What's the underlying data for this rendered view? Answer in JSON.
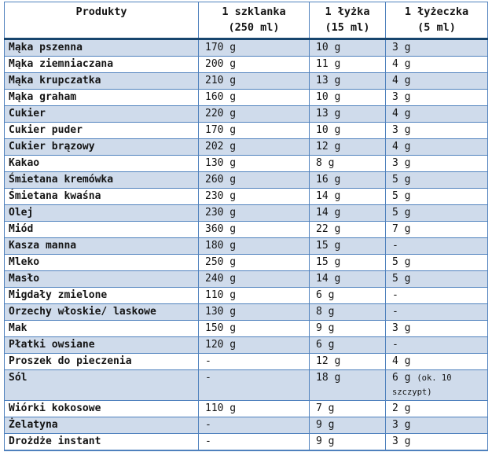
{
  "table": {
    "columns": [
      {
        "key": "product",
        "label": "Produkty",
        "sub": ""
      },
      {
        "key": "glass",
        "label": "1 szklanka",
        "sub": "(250 ml)"
      },
      {
        "key": "spoon",
        "label": "1 łyżka",
        "sub": "(15 ml)"
      },
      {
        "key": "tsp",
        "label": "1 łyżeczka",
        "sub": "(5 ml)"
      }
    ],
    "rows": [
      {
        "product": "Mąka pszenna",
        "glass": "170 g",
        "spoon": "10 g",
        "tsp": "3 g"
      },
      {
        "product": "Mąka ziemniaczana",
        "glass": "200 g",
        "spoon": "11 g",
        "tsp": "4 g"
      },
      {
        "product": "Mąka krupczatka",
        "glass": "210 g",
        "spoon": "13 g",
        "tsp": "4 g"
      },
      {
        "product": "Mąka graham",
        "glass": "160 g",
        "spoon": "10 g",
        "tsp": "3 g"
      },
      {
        "product": "Cukier",
        "glass": "220 g",
        "spoon": "13 g",
        "tsp": "4 g"
      },
      {
        "product": "Cukier puder",
        "glass": "170 g",
        "spoon": "10 g",
        "tsp": "3 g"
      },
      {
        "product": "Cukier brązowy",
        "glass": "202 g",
        "spoon": "12 g",
        "tsp": "4 g"
      },
      {
        "product": "Kakao",
        "glass": "130 g",
        "spoon": "8 g",
        "tsp": "3 g"
      },
      {
        "product": "Śmietana kremówka",
        "glass": "260 g",
        "spoon": "16 g",
        "tsp": "5 g"
      },
      {
        "product": "Śmietana kwaśna",
        "glass": "230 g",
        "spoon": "14 g",
        "tsp": "5 g"
      },
      {
        "product": "Olej",
        "glass": "230 g",
        "spoon": "14 g",
        "tsp": "5 g"
      },
      {
        "product": "Miód",
        "glass": "360 g",
        "spoon": "22 g",
        "tsp": "7 g"
      },
      {
        "product": "Kasza manna",
        "glass": "180 g",
        "spoon": "15 g",
        "tsp": "-"
      },
      {
        "product": "Mleko",
        "glass": "250 g",
        "spoon": "15 g",
        "tsp": "5 g"
      },
      {
        "product": "Masło",
        "glass": "240 g",
        "spoon": "14 g",
        "tsp": "5 g"
      },
      {
        "product": "Migdały zmielone",
        "glass": "110 g",
        "spoon": "6 g",
        "tsp": "-"
      },
      {
        "product": "Orzechy włoskie/ laskowe",
        "glass": "130 g",
        "spoon": "8 g",
        "tsp": "-"
      },
      {
        "product": "Mak",
        "glass": "150 g",
        "spoon": "9 g",
        "tsp": "3 g"
      },
      {
        "product": "Płatki owsiane",
        "glass": "120 g",
        "spoon": "6 g",
        "tsp": "-"
      },
      {
        "product": "Proszek do pieczenia",
        "glass": "-",
        "spoon": "12 g",
        "tsp": "4 g"
      },
      {
        "product": "Sól",
        "glass": "-",
        "spoon": "18 g",
        "tsp": "6 g",
        "tsp_note": "(ok. 10 szczypt)"
      },
      {
        "product": "Wiórki kokosowe",
        "glass": "110 g",
        "spoon": "7 g",
        "tsp": "2 g"
      },
      {
        "product": "Żelatyna",
        "glass": "-",
        "spoon": "9 g",
        "tsp": "3 g"
      },
      {
        "product": "Drożdże instant",
        "glass": "-",
        "spoon": "9 g",
        "tsp": "3 g"
      }
    ],
    "colors": {
      "stripe": "#cfdbeb",
      "border": "#4f81bd",
      "header_rule": "#17456e",
      "text": "#141414"
    }
  }
}
